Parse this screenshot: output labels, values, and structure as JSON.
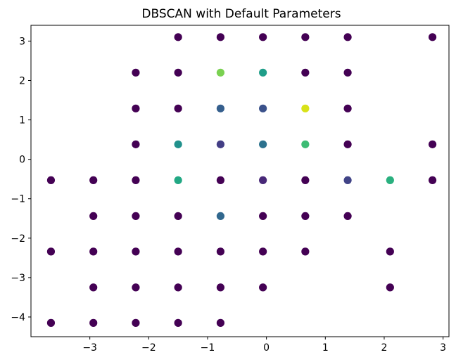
{
  "chart_data": {
    "type": "scatter",
    "title": "DBSCAN with Default Parameters",
    "xlabel": "",
    "ylabel": "",
    "xlim": [
      -4.0,
      3.1
    ],
    "ylim": [
      -4.5,
      3.4
    ],
    "xticks": [
      -3,
      -2,
      -1,
      0,
      1,
      2,
      3
    ],
    "yticks": [
      -4,
      -3,
      -2,
      -1,
      0,
      1,
      2,
      3
    ],
    "xtick_labels": [
      "−3",
      "−2",
      "−1",
      "0",
      "1",
      "2",
      "3"
    ],
    "ytick_labels": [
      "−4",
      "−3",
      "−2",
      "−1",
      "0",
      "1",
      "2",
      "3"
    ],
    "grid": false,
    "legend": false,
    "colormap": "viridis",
    "points": [
      {
        "x": -1.5,
        "y": 3.1,
        "color": "#440154"
      },
      {
        "x": -0.78,
        "y": 3.1,
        "color": "#440154"
      },
      {
        "x": -0.06,
        "y": 3.1,
        "color": "#440154"
      },
      {
        "x": 0.66,
        "y": 3.1,
        "color": "#440154"
      },
      {
        "x": 1.38,
        "y": 3.1,
        "color": "#440154"
      },
      {
        "x": 2.82,
        "y": 3.1,
        "color": "#440154"
      },
      {
        "x": -2.22,
        "y": 2.2,
        "color": "#440154"
      },
      {
        "x": -1.5,
        "y": 2.2,
        "color": "#440154"
      },
      {
        "x": -0.78,
        "y": 2.2,
        "color": "#7ad151"
      },
      {
        "x": -0.06,
        "y": 2.2,
        "color": "#1f9e89"
      },
      {
        "x": 0.66,
        "y": 2.2,
        "color": "#440154"
      },
      {
        "x": 1.38,
        "y": 2.2,
        "color": "#440154"
      },
      {
        "x": -2.22,
        "y": 1.29,
        "color": "#440154"
      },
      {
        "x": -1.5,
        "y": 1.29,
        "color": "#440154"
      },
      {
        "x": -0.78,
        "y": 1.29,
        "color": "#355f8d"
      },
      {
        "x": -0.06,
        "y": 1.29,
        "color": "#3b528b"
      },
      {
        "x": 0.66,
        "y": 1.29,
        "color": "#d8e219"
      },
      {
        "x": 1.38,
        "y": 1.29,
        "color": "#440154"
      },
      {
        "x": -2.22,
        "y": 0.38,
        "color": "#440154"
      },
      {
        "x": -1.5,
        "y": 0.38,
        "color": "#21918c"
      },
      {
        "x": -0.78,
        "y": 0.38,
        "color": "#433e85"
      },
      {
        "x": -0.06,
        "y": 0.38,
        "color": "#2c728e"
      },
      {
        "x": 0.66,
        "y": 0.38,
        "color": "#3dbc74"
      },
      {
        "x": 1.38,
        "y": 0.38,
        "color": "#440154"
      },
      {
        "x": 2.82,
        "y": 0.38,
        "color": "#440154"
      },
      {
        "x": -3.66,
        "y": -0.53,
        "color": "#440154"
      },
      {
        "x": -2.94,
        "y": -0.53,
        "color": "#440154"
      },
      {
        "x": -2.22,
        "y": -0.53,
        "color": "#440154"
      },
      {
        "x": -1.5,
        "y": -0.53,
        "color": "#22a884"
      },
      {
        "x": -0.78,
        "y": -0.53,
        "color": "#440154"
      },
      {
        "x": -0.06,
        "y": -0.53,
        "color": "#482878"
      },
      {
        "x": 0.66,
        "y": -0.53,
        "color": "#440154"
      },
      {
        "x": 1.38,
        "y": -0.53,
        "color": "#414487"
      },
      {
        "x": 2.1,
        "y": -0.53,
        "color": "#2ab07f"
      },
      {
        "x": 2.82,
        "y": -0.53,
        "color": "#440154"
      },
      {
        "x": -2.94,
        "y": -1.44,
        "color": "#440154"
      },
      {
        "x": -2.22,
        "y": -1.44,
        "color": "#440154"
      },
      {
        "x": -1.5,
        "y": -1.44,
        "color": "#440154"
      },
      {
        "x": -0.78,
        "y": -1.44,
        "color": "#31688e"
      },
      {
        "x": -0.06,
        "y": -1.44,
        "color": "#440154"
      },
      {
        "x": 0.66,
        "y": -1.44,
        "color": "#440154"
      },
      {
        "x": 1.38,
        "y": -1.44,
        "color": "#440154"
      },
      {
        "x": -3.66,
        "y": -2.34,
        "color": "#440154"
      },
      {
        "x": -2.94,
        "y": -2.34,
        "color": "#440154"
      },
      {
        "x": -2.22,
        "y": -2.34,
        "color": "#440154"
      },
      {
        "x": -1.5,
        "y": -2.34,
        "color": "#440154"
      },
      {
        "x": -0.78,
        "y": -2.34,
        "color": "#440154"
      },
      {
        "x": -0.06,
        "y": -2.34,
        "color": "#440154"
      },
      {
        "x": 0.66,
        "y": -2.34,
        "color": "#440154"
      },
      {
        "x": 2.1,
        "y": -2.34,
        "color": "#440154"
      },
      {
        "x": -2.94,
        "y": -3.25,
        "color": "#440154"
      },
      {
        "x": -2.22,
        "y": -3.25,
        "color": "#440154"
      },
      {
        "x": -1.5,
        "y": -3.25,
        "color": "#440154"
      },
      {
        "x": -0.78,
        "y": -3.25,
        "color": "#440154"
      },
      {
        "x": -0.06,
        "y": -3.25,
        "color": "#440154"
      },
      {
        "x": 2.1,
        "y": -3.25,
        "color": "#440154"
      },
      {
        "x": -3.66,
        "y": -4.15,
        "color": "#440154"
      },
      {
        "x": -2.94,
        "y": -4.15,
        "color": "#440154"
      },
      {
        "x": -2.22,
        "y": -4.15,
        "color": "#440154"
      },
      {
        "x": -1.5,
        "y": -4.15,
        "color": "#440154"
      },
      {
        "x": -0.78,
        "y": -4.15,
        "color": "#440154"
      }
    ]
  }
}
